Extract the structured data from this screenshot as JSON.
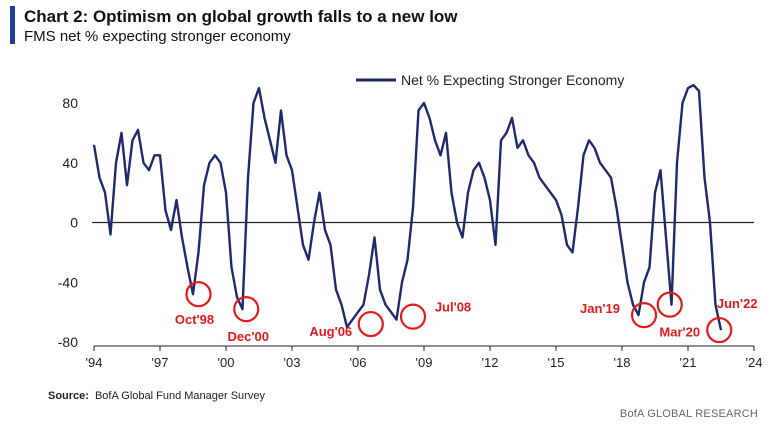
{
  "header": {
    "title": "Chart 2: Optimism on global growth falls to a new low",
    "subtitle": "FMS net % expecting stronger economy"
  },
  "footer": {
    "source_label": "Source:",
    "source_text": "BofA Global Fund Manager Survey",
    "brand": "BofA GLOBAL RESEARCH"
  },
  "colors": {
    "line": "#1f2a6b",
    "accent_bar": "#1f3d9c",
    "annotation": "#e01b1b"
  },
  "chart_data": {
    "type": "line",
    "title": "Chart 2: Optimism on global growth falls to a new low",
    "subtitle": "FMS net % expecting stronger economy",
    "xlabel": "",
    "ylabel": "",
    "xlim": [
      1994,
      2024
    ],
    "ylim": [
      -80,
      100
    ],
    "grid": false,
    "legend_position": "top-right",
    "x_ticks": [
      "'94",
      "'97",
      "'00",
      "'03",
      "'06",
      "'09",
      "'12",
      "'15",
      "'18",
      "'21",
      "'24"
    ],
    "y_ticks": [
      "80",
      "40",
      "0",
      "-40",
      "-80"
    ],
    "series": [
      {
        "name": "Net % Expecting Stronger Economy",
        "x": [
          1994.0,
          1994.25,
          1994.5,
          1994.75,
          1995.0,
          1995.25,
          1995.5,
          1995.75,
          1996.0,
          1996.25,
          1996.5,
          1996.75,
          1997.0,
          1997.25,
          1997.5,
          1997.75,
          1998.0,
          1998.25,
          1998.5,
          1998.75,
          1999.0,
          1999.25,
          1999.5,
          1999.75,
          2000.0,
          2000.25,
          2000.5,
          2000.75,
          2001.0,
          2001.25,
          2001.5,
          2001.75,
          2002.0,
          2002.25,
          2002.5,
          2002.75,
          2003.0,
          2003.25,
          2003.5,
          2003.75,
          2004.0,
          2004.25,
          2004.5,
          2004.75,
          2005.0,
          2005.25,
          2005.5,
          2005.75,
          2006.0,
          2006.25,
          2006.5,
          2006.75,
          2007.0,
          2007.25,
          2007.5,
          2007.75,
          2008.0,
          2008.25,
          2008.5,
          2008.75,
          2009.0,
          2009.25,
          2009.5,
          2009.75,
          2010.0,
          2010.25,
          2010.5,
          2010.75,
          2011.0,
          2011.25,
          2011.5,
          2011.75,
          2012.0,
          2012.25,
          2012.5,
          2012.75,
          2013.0,
          2013.25,
          2013.5,
          2013.75,
          2014.0,
          2014.25,
          2014.5,
          2014.75,
          2015.0,
          2015.25,
          2015.5,
          2015.75,
          2016.0,
          2016.25,
          2016.5,
          2016.75,
          2017.0,
          2017.25,
          2017.5,
          2017.75,
          2018.0,
          2018.25,
          2018.5,
          2018.75,
          2019.0,
          2019.25,
          2019.5,
          2019.75,
          2020.0,
          2020.25,
          2020.5,
          2020.75,
          2021.0,
          2021.25,
          2021.5,
          2021.75,
          2022.0,
          2022.25,
          2022.5
        ],
        "y": [
          52,
          30,
          20,
          -8,
          40,
          60,
          25,
          55,
          62,
          40,
          35,
          45,
          45,
          8,
          -5,
          15,
          -10,
          -30,
          -48,
          -20,
          25,
          40,
          45,
          40,
          20,
          -30,
          -50,
          -58,
          30,
          80,
          90,
          70,
          55,
          40,
          75,
          45,
          35,
          10,
          -15,
          -25,
          0,
          20,
          -5,
          -15,
          -45,
          -55,
          -70,
          -65,
          -60,
          -55,
          -35,
          -10,
          -45,
          -55,
          -60,
          -65,
          -40,
          -25,
          10,
          75,
          80,
          70,
          55,
          45,
          60,
          20,
          0,
          -10,
          20,
          35,
          40,
          30,
          15,
          -15,
          55,
          60,
          70,
          50,
          55,
          45,
          40,
          30,
          25,
          20,
          15,
          5,
          -15,
          -20,
          10,
          45,
          55,
          50,
          40,
          35,
          30,
          10,
          -15,
          -40,
          -55,
          -62,
          -40,
          -30,
          20,
          35,
          -10,
          -55,
          40,
          80,
          90,
          92,
          88,
          30,
          0,
          -55,
          -72
        ]
      }
    ],
    "annotations": [
      {
        "label": "Oct'98",
        "x": 1998.75,
        "y": -48
      },
      {
        "label": "Dec'00",
        "x": 2000.92,
        "y": -58
      },
      {
        "label": "Aug'06",
        "x": 2006.58,
        "y": -68
      },
      {
        "label": "Jul'08",
        "x": 2008.5,
        "y": -63
      },
      {
        "label": "Jan'19",
        "x": 2019.0,
        "y": -62
      },
      {
        "label": "Mar'20",
        "x": 2020.17,
        "y": -55
      },
      {
        "label": "Jun'22",
        "x": 2022.42,
        "y": -72
      }
    ]
  }
}
